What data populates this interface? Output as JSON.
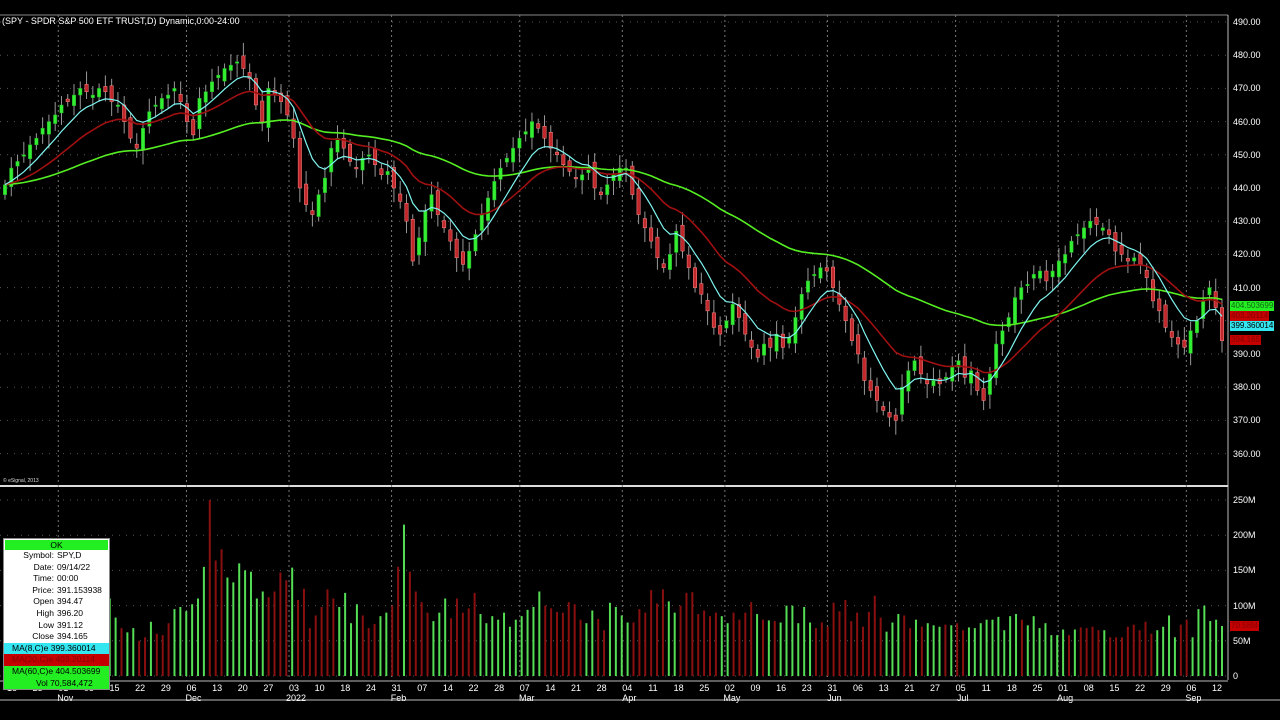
{
  "window": {
    "title": "(SPY - SPDR S&P 500 ETF TRUST,D) Dynamic,0:00-24:00",
    "copyright": "© eSignal, 2013"
  },
  "price_axis": {
    "labels": [
      "490.00",
      "480.00",
      "470.00",
      "460.00",
      "450.00",
      "440.00",
      "430.00",
      "420.00",
      "410.00",
      "400.00",
      "390.00",
      "380.00",
      "370.00",
      "360.00"
    ],
    "values": [
      490,
      480,
      470,
      460,
      450,
      440,
      430,
      420,
      410,
      400,
      390,
      380,
      370,
      360
    ]
  },
  "volume_axis": {
    "labels": [
      "250M",
      "200M",
      "150M",
      "100M",
      "50M",
      "0"
    ],
    "values": [
      250,
      200,
      150,
      100,
      50,
      0
    ]
  },
  "date_axis": {
    "days": [
      "18",
      "25",
      "01",
      "08",
      "15",
      "22",
      "29",
      "06",
      "13",
      "20",
      "27",
      "03",
      "10",
      "18",
      "24",
      "31",
      "07",
      "14",
      "22",
      "28",
      "07",
      "14",
      "21",
      "28",
      "04",
      "11",
      "18",
      "25",
      "02",
      "09",
      "16",
      "23",
      "31",
      "06",
      "13",
      "21",
      "27",
      "05",
      "11",
      "18",
      "25",
      "01",
      "08",
      "15",
      "22",
      "29",
      "06",
      "12"
    ],
    "months": [
      {
        "label": "Nov",
        "index": 2
      },
      {
        "label": "Dec",
        "index": 7
      },
      {
        "label": "2022",
        "index": 11
      },
      {
        "label": "Feb",
        "index": 15
      },
      {
        "label": "Mar",
        "index": 20
      },
      {
        "label": "Apr",
        "index": 24
      },
      {
        "label": "May",
        "index": 28
      },
      {
        "label": "Jun",
        "index": 32
      },
      {
        "label": "Jul",
        "index": 37
      },
      {
        "label": "Aug",
        "index": 41
      },
      {
        "label": "Sep",
        "index": 46
      }
    ]
  },
  "price_tags": {
    "ma60": {
      "text": "404.503699",
      "value": 404.5,
      "bg": "#22ee22",
      "color": "#116611"
    },
    "ma20": {
      "text": "403.20114",
      "value": 401.5,
      "bg": "#c40000",
      "color": "#880000"
    },
    "ma8": {
      "text": "399.360014",
      "value": 398.5,
      "bg": "#33e6f0",
      "color": "#000000"
    },
    "close": {
      "text": "394.165",
      "value": 394.2,
      "bg": "#c40000",
      "color": "#880000"
    },
    "volume": {
      "text": "70.58M",
      "value": 70.58,
      "bg": "#c40000",
      "color": "#880000"
    }
  },
  "info_box": {
    "status": "OK",
    "rows": [
      {
        "key": "Symbol:",
        "value": "SPY,D"
      },
      {
        "key": "Date:",
        "value": "09/14/22"
      },
      {
        "key": "Time:",
        "value": "00:00"
      },
      {
        "key": "Price:",
        "value": "391.153938"
      },
      {
        "key": "Open",
        "value": "394.47"
      },
      {
        "key": "High",
        "value": "396.20"
      },
      {
        "key": "Low",
        "value": "391.12"
      },
      {
        "key": "Close",
        "value": "394.165"
      }
    ],
    "ma8": "MA(8,C)e 399.360014",
    "ma20": "MA(20,C)e 403.20114",
    "ma60": "MA(60,C)e 404.503699",
    "vol": "Vol 70,584,472"
  },
  "colors": {
    "up": "#33ee33",
    "down": "#c0282c",
    "ma8": "#7ff5f0",
    "ma20": "#a01010",
    "ma60": "#55ee22",
    "vol_up": "#55dd55",
    "vol_down": "#8a1010",
    "grid": "#555555"
  },
  "chart_data": {
    "type": "candlestick",
    "title": "(SPY - SPDR S&P 500 ETF TRUST,D) Dynamic,0:00-24:00",
    "xlabel": "",
    "ylabel": "",
    "ylim": [
      355,
      492
    ],
    "volume_ylim": [
      0,
      260
    ],
    "grid": true,
    "legend": [
      "MA(8,C)e",
      "MA(20,C)e",
      "MA(60,C)e",
      "Vol"
    ],
    "x_start": "2021-10-18",
    "x_end": "2022-09-14",
    "closes": [
      441,
      446,
      448,
      450,
      453,
      455,
      458,
      460,
      462,
      465,
      466,
      468,
      470,
      469,
      468,
      470,
      469,
      466,
      465,
      460,
      455,
      452,
      458,
      463,
      465,
      467,
      468,
      470,
      466,
      460,
      456,
      467,
      469,
      472,
      474,
      476,
      477,
      478,
      476,
      473,
      465,
      460,
      470,
      468,
      466,
      462,
      455,
      440,
      435,
      432,
      438,
      443,
      452,
      455,
      452,
      448,
      446,
      449,
      450,
      447,
      444,
      445,
      440,
      436,
      430,
      418,
      425,
      433,
      438,
      432,
      428,
      424,
      419,
      417,
      421,
      426,
      432,
      437,
      442,
      446,
      449,
      452,
      455,
      457,
      460,
      458,
      455,
      452,
      450,
      447,
      445,
      443,
      444,
      446,
      440,
      438,
      441,
      444,
      446,
      446,
      438,
      432,
      428,
      424,
      419,
      416,
      420,
      427,
      421,
      416,
      410,
      408,
      403,
      398,
      396,
      400,
      405,
      401,
      396,
      392,
      389,
      393,
      392,
      396,
      392,
      395,
      401,
      408,
      412,
      414,
      416,
      415,
      410,
      405,
      400,
      394,
      390,
      382,
      379,
      376,
      373,
      371,
      370,
      380,
      385,
      388,
      384,
      381,
      382,
      381,
      383,
      386,
      388,
      383,
      385,
      379,
      376,
      384,
      393,
      397,
      401,
      407,
      410,
      411,
      414,
      415,
      412,
      415,
      418,
      420,
      424,
      426,
      428,
      430,
      429,
      428,
      426,
      421,
      420,
      418,
      419,
      417,
      413,
      406,
      403,
      398,
      395,
      393,
      392,
      397,
      400,
      406,
      410,
      404,
      394
    ],
    "ma8": [],
    "ma20": [],
    "ma60": [],
    "volume_millions": [
      58,
      58,
      57,
      58,
      64,
      80,
      76,
      70,
      91,
      130,
      114,
      110,
      83,
      68,
      62,
      68,
      50,
      55,
      77,
      60,
      58,
      75,
      95,
      98,
      92,
      102,
      110,
      155,
      250,
      164,
      180,
      140,
      133,
      160,
      150,
      148,
      110,
      120,
      112,
      120,
      147,
      136,
      154,
      108,
      124,
      68,
      86,
      98,
      123,
      110,
      98,
      118,
      75,
      102,
      86,
      68,
      74,
      85,
      90,
      100,
      155,
      215,
      148,
      120,
      105,
      90,
      78,
      90,
      110,
      82,
      110,
      90,
      96,
      118,
      88,
      75,
      85,
      80,
      90,
      70,
      80,
      85,
      94,
      98,
      120,
      100,
      96,
      91,
      90,
      105,
      102,
      80,
      75,
      93,
      81,
      65,
      104,
      98,
      86,
      76,
      76,
      95,
      90,
      122,
      103,
      123,
      106,
      90,
      100,
      118,
      119,
      88,
      93,
      85,
      90,
      85,
      75,
      90,
      80,
      90,
      105,
      88,
      80,
      79,
      78,
      76,
      100,
      100,
      75,
      98,
      76,
      68,
      76,
      70,
      104,
      92,
      108,
      78,
      90,
      70,
      91,
      114,
      83,
      63,
      76,
      88,
      86,
      68,
      80,
      70,
      75,
      72,
      70,
      73,
      72,
      75,
      65,
      69,
      68,
      75,
      80,
      80,
      84,
      65,
      85,
      88,
      80,
      72,
      85,
      68,
      75,
      58,
      58,
      66,
      58,
      66,
      69,
      68,
      70,
      65,
      65,
      55,
      55,
      55,
      70,
      73,
      65,
      77,
      60,
      65,
      70,
      86,
      55,
      73,
      80,
      55,
      95,
      100,
      78,
      80,
      71
    ]
  }
}
